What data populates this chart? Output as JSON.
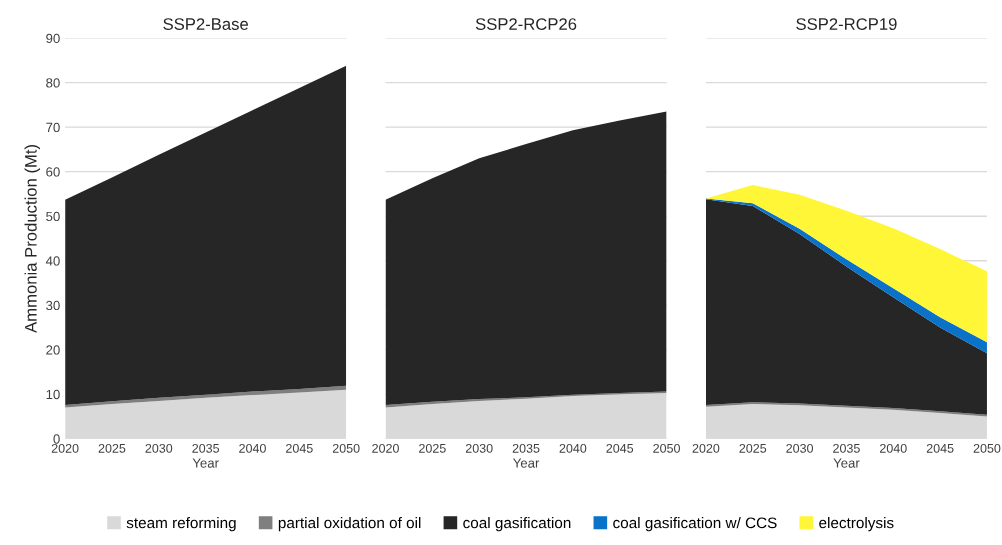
{
  "chart_data": [
    {
      "type": "area",
      "title": "SSP2-Base",
      "xlabel": "Year",
      "ylabel": "Ammonia Production (Mt)",
      "stacked": true,
      "x": [
        2020,
        2025,
        2030,
        2035,
        2040,
        2045,
        2050
      ],
      "xlim": [
        2020,
        2050
      ],
      "xticks": [
        2020,
        2025,
        2030,
        2035,
        2040,
        2045,
        2050
      ],
      "ylim": [
        0,
        90
      ],
      "yticks": [
        0,
        10,
        20,
        30,
        40,
        50,
        60,
        70,
        80,
        90
      ],
      "grid": "y",
      "series": [
        {
          "color": "#d9d9d9",
          "values": [
            7.0,
            7.8,
            8.5,
            9.2,
            9.8,
            10.4,
            11.0
          ]
        },
        {
          "color": "#7f7f7f",
          "values": [
            0.6,
            0.6,
            0.7,
            0.7,
            0.8,
            0.8,
            0.9
          ]
        },
        {
          "color": "#262626",
          "values": [
            46.1,
            50.3,
            54.6,
            58.9,
            63.2,
            67.6,
            71.9
          ]
        }
      ]
    },
    {
      "type": "area",
      "title": "SSP2-RCP26",
      "xlabel": "Year",
      "stacked": true,
      "x": [
        2020,
        2025,
        2030,
        2035,
        2040,
        2045,
        2050
      ],
      "xlim": [
        2020,
        2050
      ],
      "xticks": [
        2020,
        2025,
        2030,
        2035,
        2040,
        2045,
        2050
      ],
      "ylim": [
        0,
        90
      ],
      "yticks": [
        0,
        10,
        20,
        30,
        40,
        50,
        60,
        70,
        80,
        90
      ],
      "grid": "y",
      "tick_labels": "x",
      "series": [
        {
          "color": "#d9d9d9",
          "values": [
            7.0,
            7.8,
            8.5,
            9.0,
            9.6,
            10.0,
            10.3
          ]
        },
        {
          "color": "#7f7f7f",
          "values": [
            0.6,
            0.5,
            0.4,
            0.3,
            0.3,
            0.3,
            0.3
          ]
        },
        {
          "color": "#262626",
          "values": [
            46.1,
            50.2,
            54.1,
            56.9,
            59.4,
            61.2,
            62.9
          ]
        }
      ]
    },
    {
      "type": "area",
      "title": "SSP2-RCP19",
      "xlabel": "Year",
      "stacked": true,
      "x": [
        2020,
        2025,
        2030,
        2035,
        2040,
        2045,
        2050
      ],
      "xlim": [
        2020,
        2050
      ],
      "xticks": [
        2020,
        2025,
        2030,
        2035,
        2040,
        2045,
        2050
      ],
      "ylim": [
        0,
        90
      ],
      "yticks": [
        0,
        10,
        20,
        30,
        40,
        50,
        60,
        70,
        80,
        90
      ],
      "grid": "y",
      "tick_labels": "x",
      "legend": "bottom",
      "series": [
        {
          "name": "steam reforming",
          "color": "#d9d9d9",
          "values": [
            7.2,
            7.8,
            7.5,
            7.0,
            6.5,
            5.8,
            5.0
          ]
        },
        {
          "name": "partial oxidation of oil",
          "color": "#7f7f7f",
          "values": [
            0.4,
            0.4,
            0.4,
            0.4,
            0.4,
            0.4,
            0.4
          ]
        },
        {
          "name": "coal gasification",
          "color": "#262626",
          "values": [
            46.2,
            44.1,
            38.1,
            31.3,
            24.9,
            18.8,
            13.8
          ]
        },
        {
          "name": "coal gasification w/ CCS",
          "color": "#0a72c8",
          "values": [
            0.2,
            0.6,
            1.2,
            1.6,
            2.0,
            2.3,
            2.5
          ]
        },
        {
          "name": "electrolysis",
          "color": "#fef637",
          "values": [
            0,
            4.1,
            7.6,
            10.9,
            13.5,
            15.3,
            15.9
          ]
        }
      ]
    }
  ]
}
